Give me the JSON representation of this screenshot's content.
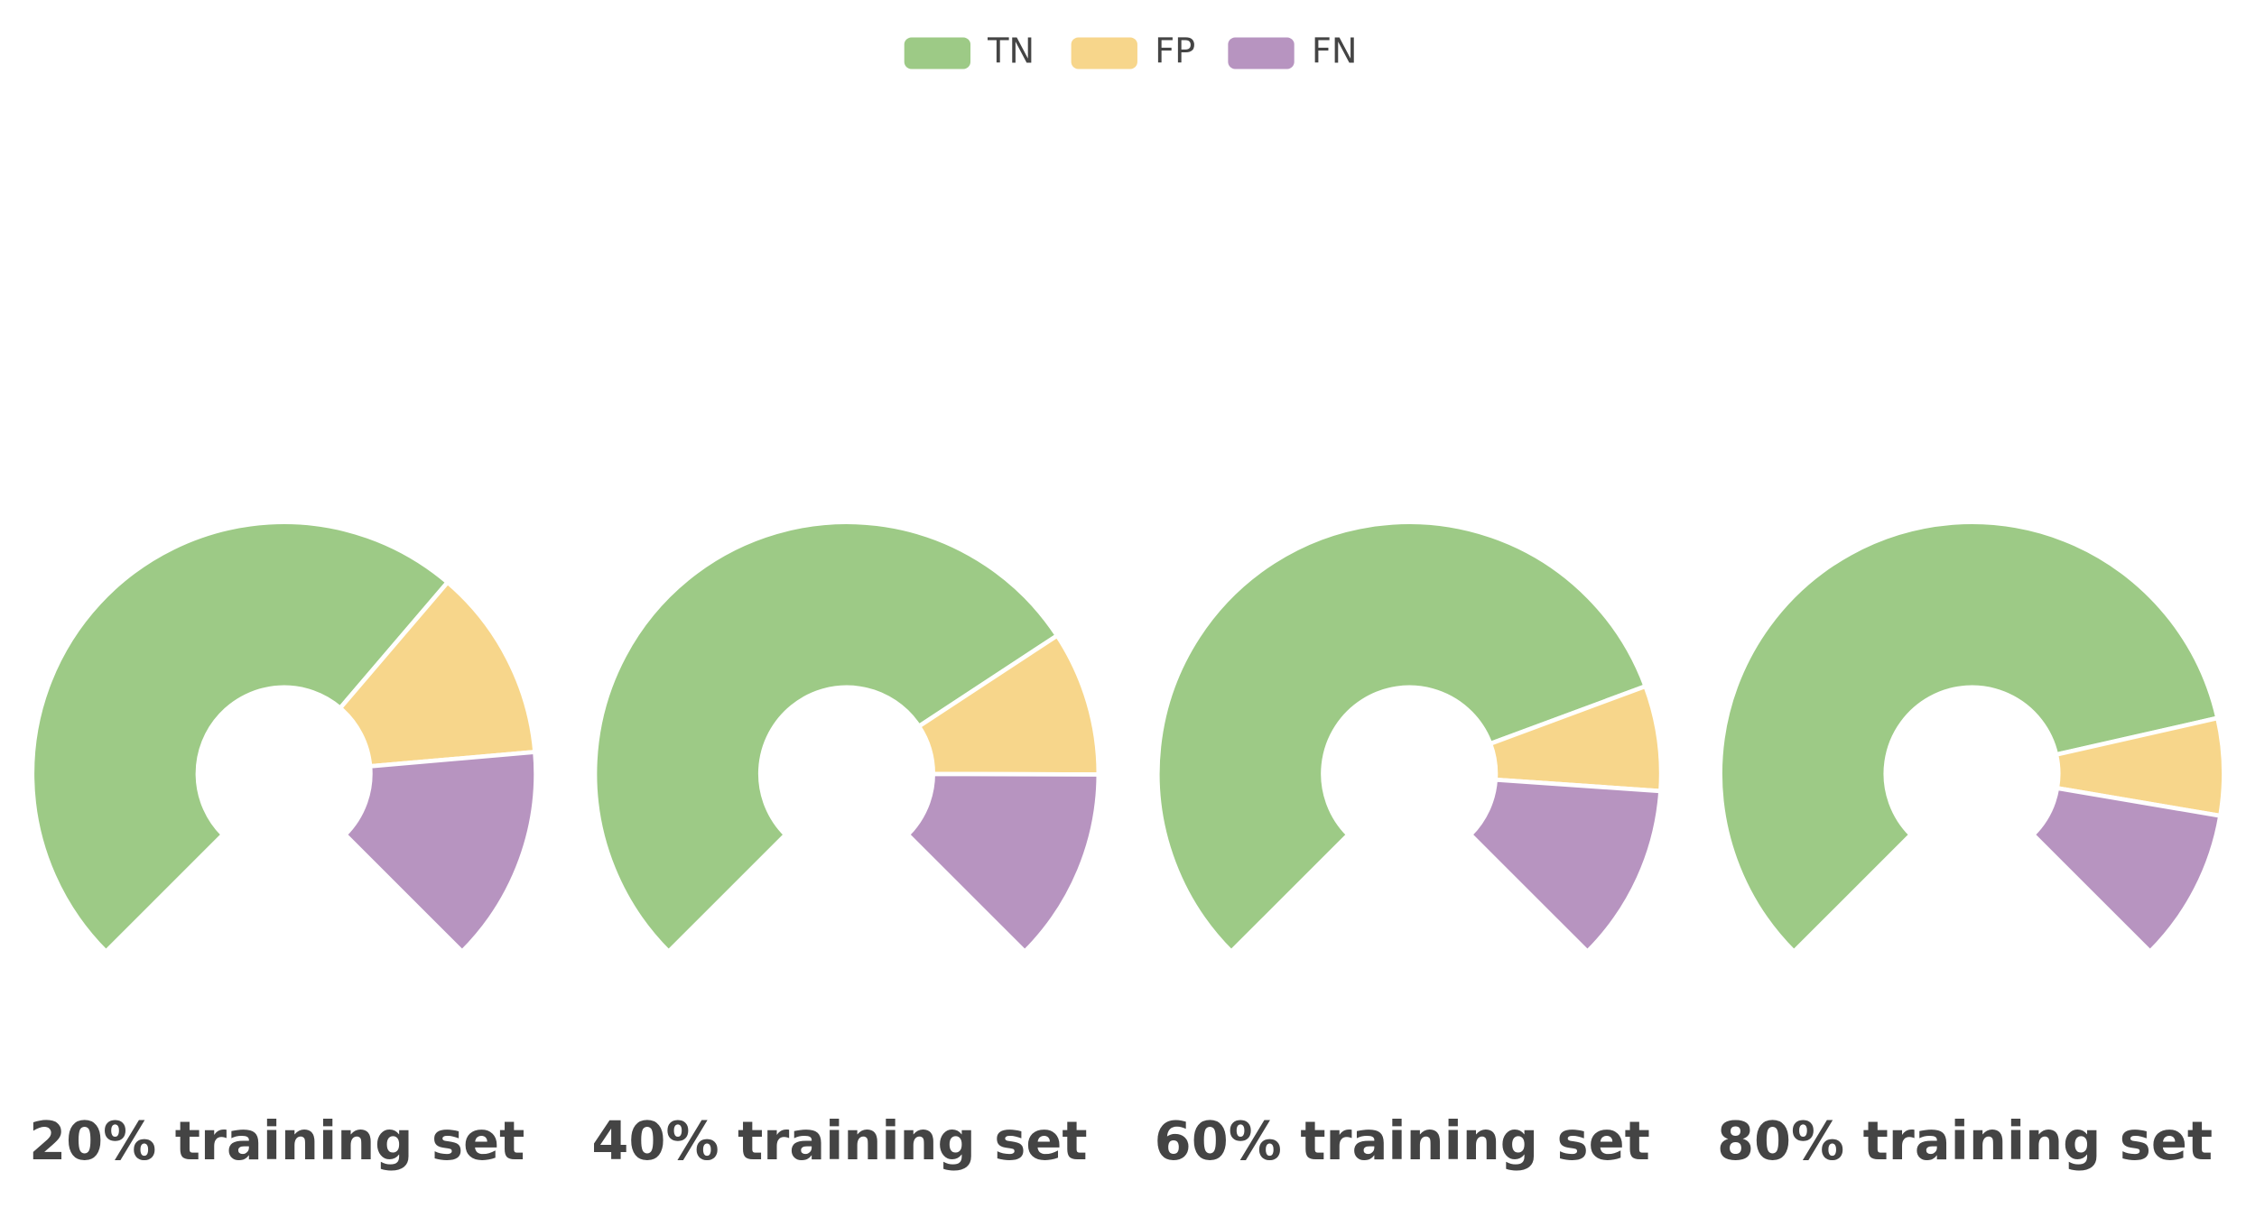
{
  "chart_data": [
    {
      "type": "donut",
      "title": "20% training set",
      "categories": [
        "TN",
        "FP",
        "FN"
      ],
      "values": [
        65,
        16.5,
        18.5
      ],
      "colors": [
        "#9dca86",
        "#f7d68b",
        "#b794c0"
      ]
    },
    {
      "type": "donut",
      "title": "40% training set",
      "categories": [
        "TN",
        "FP",
        "FN"
      ],
      "values": [
        71,
        12.4,
        16.6
      ],
      "colors": [
        "#9dca86",
        "#f7d68b",
        "#b794c0"
      ]
    },
    {
      "type": "donut",
      "title": "60% training set",
      "categories": [
        "TN",
        "FP",
        "FN"
      ],
      "values": [
        75.8,
        9,
        15.2
      ],
      "colors": [
        "#9dca86",
        "#f7d68b",
        "#b794c0"
      ]
    },
    {
      "type": "donut",
      "title": "80% training set",
      "categories": [
        "TN",
        "FP",
        "FN"
      ],
      "values": [
        78.6,
        8.3,
        13.1
      ],
      "colors": [
        "#9dca86",
        "#f7d68b",
        "#b794c0"
      ]
    }
  ]
}
